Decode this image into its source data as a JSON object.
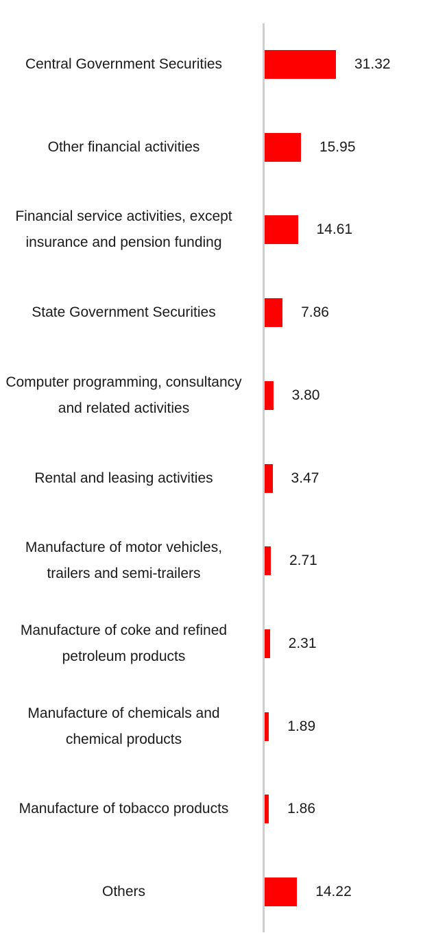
{
  "colors": {
    "bar": "#ff0000",
    "axis": "#cfcfcf",
    "text": "#1a1a1a"
  },
  "chart_data": {
    "type": "bar",
    "orientation": "horizontal",
    "title": "",
    "xlabel": "",
    "ylabel": "",
    "grid": false,
    "categories": [
      "Central Government Securities",
      "Other financial activities",
      "Financial service activities, except insurance and pension funding",
      "State Government Securities",
      "Computer programming, consultancy and related activities",
      "Rental and leasing activities",
      "Manufacture of motor vehicles, trailers and semi-trailers",
      "Manufacture of coke and refined petroleum products",
      "Manufacture of chemicals and chemical products",
      "Manufacture of tobacco products",
      "Others"
    ],
    "values": [
      31.32,
      15.95,
      14.61,
      7.86,
      3.8,
      3.47,
      2.71,
      2.31,
      1.89,
      1.86,
      14.22
    ],
    "value_labels": [
      "31.32",
      "15.95",
      "14.61",
      "7.86",
      "3.80",
      "3.47",
      "2.71",
      "2.31",
      "1.89",
      "1.86",
      "14.22"
    ],
    "xlim": [
      0,
      31.32
    ]
  }
}
